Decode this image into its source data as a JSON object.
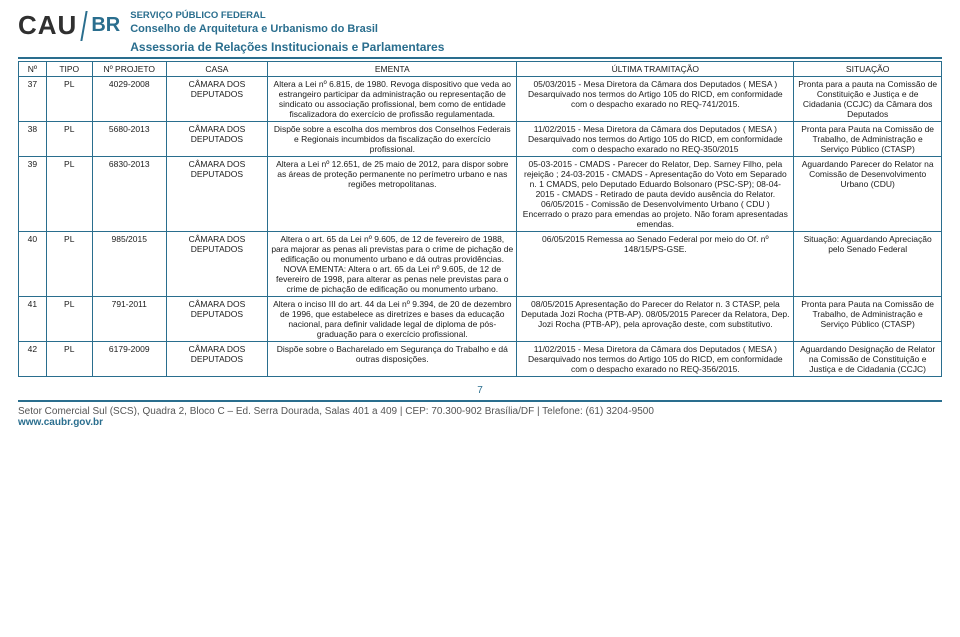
{
  "header": {
    "logo_text": "CAU",
    "logo_br": "BR",
    "line1": "SERVIÇO PÚBLICO FEDERAL",
    "line2": "Conselho de Arquitetura e Urbanismo do Brasil",
    "line3": "Assessoria de Relações Institucionais e Parlamentares"
  },
  "table": {
    "columns": [
      "Nº",
      "TIPO",
      "Nº PROJETO",
      "CASA",
      "EMENTA",
      "ÚLTIMA TRAMITAÇÃO",
      "SITUAÇÃO"
    ],
    "rows": [
      {
        "n": "37",
        "tipo": "PL",
        "proj": "4029-2008",
        "casa": "CÂMARA DOS DEPUTADOS",
        "ementa": "Altera a Lei nº 6.815, de 1980. Revoga dispositivo que veda ao estrangeiro participar da administração ou representação de sindicato ou associação profissional, bem como de entidade fiscalizadora do exercício de profissão regulamentada.",
        "tram": "05/03/2015 - Mesa Diretora da Câmara dos Deputados ( MESA ) Desarquivado nos termos do Artigo 105 do RICD, em conformidade com o despacho exarado no REQ-741/2015.",
        "sit": "Pronta para a pauta na Comissão de Constituição e Justiça e de Cidadania (CCJC) da Câmara dos Deputados"
      },
      {
        "n": "38",
        "tipo": "PL",
        "proj": "5680-2013",
        "casa": "CÂMARA DOS DEPUTADOS",
        "ementa": "Dispõe sobre a escolha dos membros dos Conselhos Federais e Regionais incumbidos da fiscalização do exercício profissional.",
        "tram": "11/02/2015 - Mesa Diretora da Câmara dos Deputados ( MESA ) Desarquivado nos termos do Artigo 105 do RICD, em conformidade com o despacho exarado no REQ-350/2015",
        "sit": "Pronta para Pauta na Comissão de Trabalho, de Administração e Serviço Público (CTASP)"
      },
      {
        "n": "39",
        "tipo": "PL",
        "proj": "6830-2013",
        "casa": "CÂMARA DOS DEPUTADOS",
        "ementa": "Altera a Lei nº 12.651, de 25 maio de 2012, para dispor sobre as áreas de proteção permanente no perímetro urbano e nas regiões metropolitanas.",
        "tram": "05-03-2015 - CMADS - Parecer do Relator, Dep. Sarney Filho, pela rejeição ; 24-03-2015 - CMADS - Apresentação do Voto em Separado n. 1 CMADS, pelo Deputado Eduardo Bolsonaro (PSC-SP); 08-04-2015 - CMADS - Retirado de pauta devido ausência do Relator. 06/05/2015 - Comissão de Desenvolvimento Urbano ( CDU ) Encerrado o prazo para emendas ao projeto. Não foram apresentadas emendas.",
        "sit": "Aguardando Parecer do Relator na Comissão de Desenvolvimento Urbano (CDU)"
      },
      {
        "n": "40",
        "tipo": "PL",
        "proj": "985/2015",
        "casa": "CÂMARA DOS DEPUTADOS",
        "ementa": "Altera o art. 65 da Lei nº 9.605, de 12 de fevereiro de 1988, para majorar as penas ali previstas para o crime de pichação de edificação ou monumento urbano e dá outras providências. NOVA EMENTA: Altera o art. 65 da Lei nº 9.605, de 12 de fevereiro de 1998, para alterar as penas nele previstas para o crime de pichação de edificação ou monumento urbano.",
        "tram": "06/05/2015 Remessa ao Senado Federal por meio do Of. nº 148/15/PS-GSE.",
        "sit": "Situação: Aguardando Apreciação pelo Senado Federal"
      },
      {
        "n": "41",
        "tipo": "PL",
        "proj": "791-2011",
        "casa": "CÂMARA DOS DEPUTADOS",
        "ementa": "Altera o inciso III do art. 44 da Lei nº 9.394, de 20 de dezembro de 1996, que estabelece as diretrizes e bases da educação nacional, para definir validade legal de diploma de pós-graduação para o exercício profissional.",
        "tram": "08/05/2015 Apresentação do Parecer do Relator n. 3 CTASP, pela Deputada Jozi Rocha (PTB-AP). 08/05/2015 Parecer da Relatora, Dep. Jozi Rocha (PTB-AP), pela aprovação deste, com substitutivo.",
        "sit": "Pronta para Pauta na Comissão de Trabalho, de Administração e Serviço Público (CTASP)"
      },
      {
        "n": "42",
        "tipo": "PL",
        "proj": "6179-2009",
        "casa": "CÂMARA DOS DEPUTADOS",
        "ementa": "Dispõe sobre o Bacharelado em Segurança do Trabalho e dá outras disposições.",
        "tram": "11/02/2015 - Mesa Diretora da Câmara dos Deputados ( MESA ) Desarquivado nos termos do Artigo 105 do RICD, em conformidade com o despacho exarado no REQ-356/2015.",
        "sit": "Aguardando Designação de Relator na Comissão de Constituição e Justiça e de Cidadania (CCJC)"
      }
    ]
  },
  "page_num": "7",
  "footer": {
    "line1": "Setor Comercial Sul (SCS), Quadra 2, Bloco C – Ed. Serra Dourada, Salas 401 a 409 | CEP: 70.300-902 Brasília/DF | Telefone: (61) 3204-9500",
    "line2": "www.caubr.gov.br"
  }
}
